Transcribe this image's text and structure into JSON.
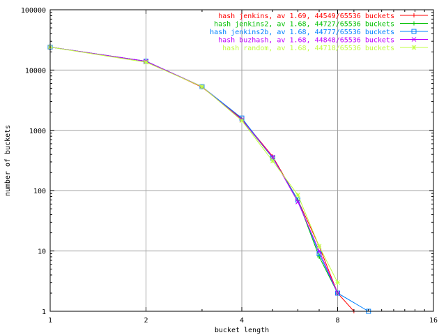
{
  "chart_data": {
    "type": "line",
    "title": "",
    "xlabel": "bucket length",
    "ylabel": "number of buckets",
    "x_scale": "log2",
    "y_scale": "log10",
    "xlim": [
      1,
      16
    ],
    "ylim": [
      1,
      100000
    ],
    "x_ticks": [
      {
        "value": 1,
        "label": "1"
      },
      {
        "value": 2,
        "label": "2"
      },
      {
        "value": 4,
        "label": "4"
      },
      {
        "value": 8,
        "label": "8"
      },
      {
        "value": 16,
        "label": "16"
      }
    ],
    "y_ticks": [
      {
        "value": 1,
        "label": "1"
      },
      {
        "value": 10,
        "label": "10"
      },
      {
        "value": 100,
        "label": "100"
      },
      {
        "value": 1000,
        "label": "1000"
      },
      {
        "value": 10000,
        "label": "10000"
      },
      {
        "value": 100000,
        "label": "100000"
      }
    ],
    "grid": true,
    "legend_position": "top-right",
    "series": [
      {
        "name": "hash jenkins, av 1.69, 44549/65536 buckets",
        "color": "#ff0000",
        "marker": "plus",
        "x": [
          1,
          2,
          3,
          4,
          5,
          6,
          7,
          8,
          9
        ],
        "y": [
          24000,
          14000,
          5200,
          1550,
          370,
          70,
          12,
          2,
          1
        ]
      },
      {
        "name": "hash jenkins2, av 1.68, 44727/65536 buckets",
        "color": "#00c000",
        "marker": "plus",
        "x": [
          1,
          2,
          3,
          4,
          5,
          6,
          7,
          8
        ],
        "y": [
          24000,
          14000,
          5300,
          1500,
          350,
          70,
          8,
          2
        ]
      },
      {
        "name": "hash jenkins2b, av 1.68, 44777/65536 buckets",
        "color": "#0080ff",
        "marker": "square",
        "x": [
          1,
          2,
          3,
          4,
          5,
          6,
          7,
          8,
          10
        ],
        "y": [
          24000,
          14000,
          5300,
          1600,
          350,
          70,
          9,
          2,
          1
        ]
      },
      {
        "name": "hash buzhash, av 1.68, 44848/65536 buckets",
        "color": "#c000ff",
        "marker": "cross",
        "x": [
          1,
          2,
          3,
          4,
          5,
          6,
          7,
          8
        ],
        "y": [
          24000,
          14000,
          5300,
          1500,
          360,
          65,
          10,
          2
        ]
      },
      {
        "name": "hash random, av 1.68, 44718/65536 buckets",
        "color": "#c0ff40",
        "marker": "star",
        "x": [
          1,
          2,
          3,
          4,
          5,
          6,
          7,
          8
        ],
        "y": [
          24000,
          13500,
          5300,
          1450,
          310,
          85,
          12,
          3
        ]
      }
    ]
  }
}
